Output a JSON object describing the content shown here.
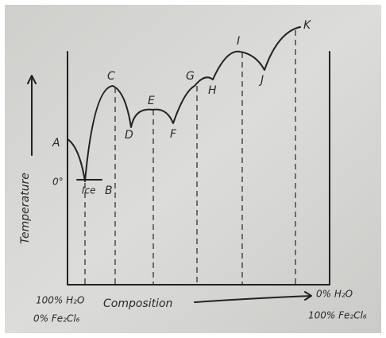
{
  "points": [
    "A",
    "B",
    "C",
    "D",
    "E",
    "F",
    "G",
    "H",
    "I",
    "J",
    "K"
  ],
  "ice": "Ice",
  "zero": "0°",
  "axes": {
    "y": "Temperature",
    "x": "Composition"
  },
  "left_end": [
    "100% H₂O",
    "0% Fe₂Cl₆"
  ],
  "right_end": [
    "0% H₂O",
    "100% Fe₂Cl₆"
  ]
}
